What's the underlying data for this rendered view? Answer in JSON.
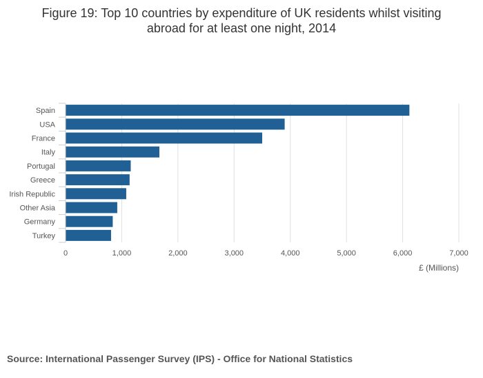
{
  "chart_data": {
    "type": "bar",
    "orientation": "horizontal",
    "title_line1": "Figure 19: Top 10 countries by expenditure of UK residents whilst visiting",
    "title_line2": "abroad for at least one night, 2014",
    "categories": [
      "Spain",
      "USA",
      "France",
      "Italy",
      "Portugal",
      "Greece",
      "Irish Republic",
      "Other Asia",
      "Germany",
      "Turkey"
    ],
    "values": [
      6120,
      3900,
      3500,
      1670,
      1160,
      1140,
      1080,
      920,
      840,
      810
    ],
    "xlabel": "£ (Millions)",
    "ylabel": "",
    "xlim": [
      0,
      7000
    ],
    "ticks": [
      0,
      1000,
      2000,
      3000,
      4000,
      5000,
      6000,
      7000
    ],
    "tick_labels": [
      "0",
      "1,000",
      "2,000",
      "3,000",
      "4,000",
      "5,000",
      "6,000",
      "7,000"
    ],
    "grid": true,
    "bar_color": "#206095",
    "grid_color": "#e0e0e0"
  },
  "source": "Source: International Passenger Survey (IPS) - Office for National Statistics"
}
